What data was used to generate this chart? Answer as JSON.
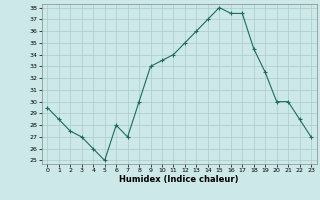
{
  "x": [
    0,
    1,
    2,
    3,
    4,
    5,
    6,
    7,
    8,
    9,
    10,
    11,
    12,
    13,
    14,
    15,
    16,
    17,
    18,
    19,
    20,
    21,
    22,
    23
  ],
  "y": [
    29.5,
    28.5,
    27.5,
    27.0,
    26.0,
    25.0,
    28.0,
    27.0,
    30.0,
    33.0,
    33.5,
    34.0,
    35.0,
    36.0,
    37.0,
    38.0,
    37.5,
    37.5,
    34.5,
    32.5,
    30.0,
    30.0,
    28.5,
    27.0
  ],
  "title": "",
  "xlabel": "Humidex (Indice chaleur)",
  "ylabel": "",
  "ylim": [
    25,
    38
  ],
  "xlim": [
    -0.5,
    23.5
  ],
  "yticks": [
    25,
    26,
    27,
    28,
    29,
    30,
    31,
    32,
    33,
    34,
    35,
    36,
    37,
    38
  ],
  "xticks": [
    0,
    1,
    2,
    3,
    4,
    5,
    6,
    7,
    8,
    9,
    10,
    11,
    12,
    13,
    14,
    15,
    16,
    17,
    18,
    19,
    20,
    21,
    22,
    23
  ],
  "line_color": "#1e6b5e",
  "marker": "+",
  "bg_color": "#cce8e8",
  "grid_color": "#aacccc"
}
